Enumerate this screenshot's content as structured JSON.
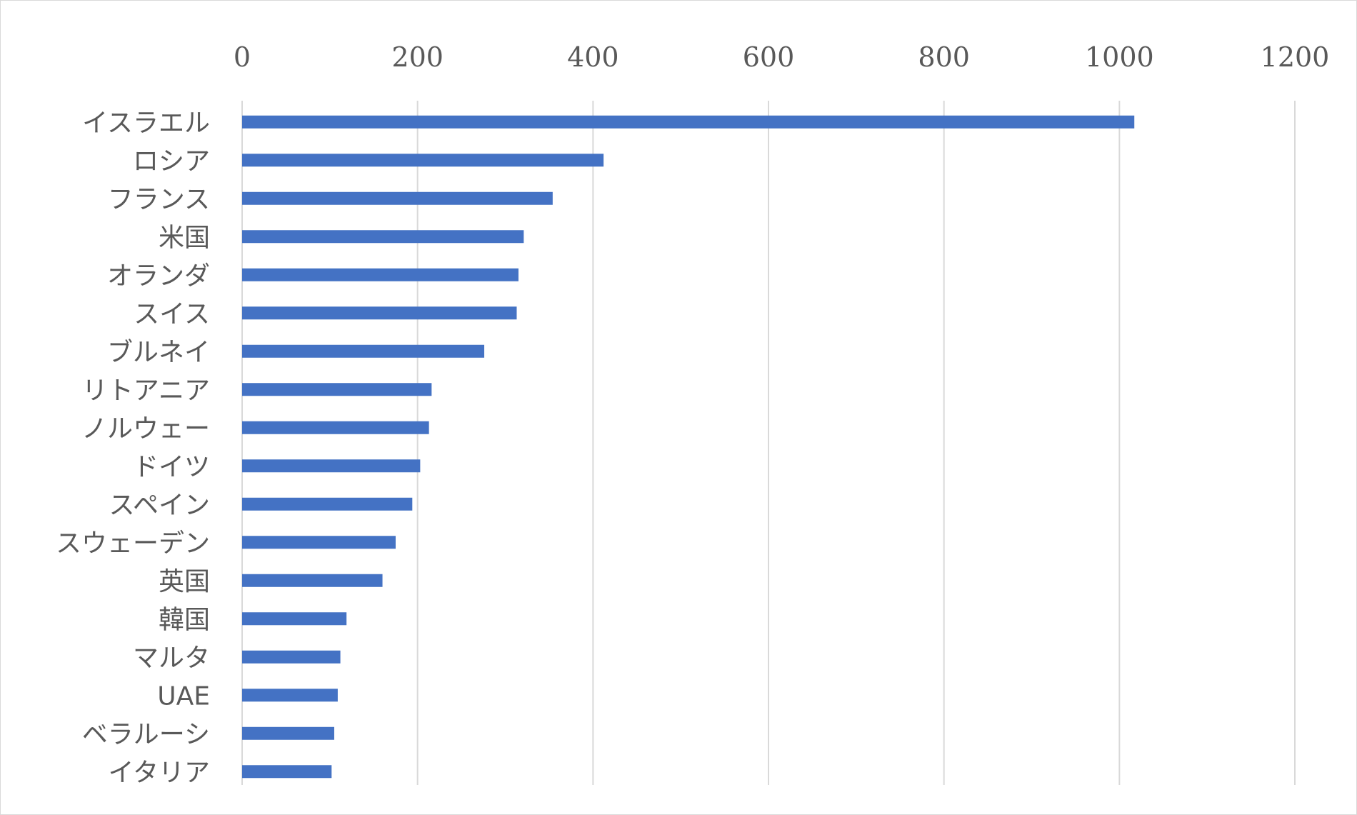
{
  "chart_data": {
    "type": "bar",
    "orientation": "horizontal",
    "categories": [
      "イスラエル",
      "ロシア",
      "フランス",
      "米国",
      "オランダ",
      "スイス",
      "ブルネイ",
      "リトアニア",
      "ノルウェー",
      "ドイツ",
      "スペイン",
      "スウェーデン",
      "英国",
      "韓国",
      "マルタ",
      "UAE",
      "ベラルーシ",
      "イタリア"
    ],
    "values": [
      1017,
      412,
      354,
      321,
      315,
      313,
      276,
      216,
      213,
      203,
      194,
      175,
      160,
      119,
      112,
      109,
      105,
      102
    ],
    "title": "",
    "xlabel": "",
    "ylabel": "",
    "xlim": [
      0,
      1200
    ],
    "xticks": [
      "0",
      "200",
      "400",
      "600",
      "800",
      "1000",
      "1200"
    ],
    "x_axis_position": "top",
    "grid": true,
    "legend": "none",
    "bar_color": "#4472c4",
    "grid_color": "#d9d9d9",
    "text_color": "#595959"
  }
}
